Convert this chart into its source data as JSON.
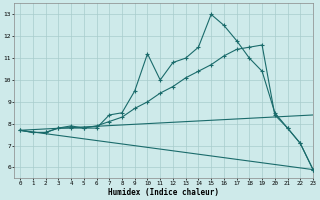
{
  "xlabel": "Humidex (Indice chaleur)",
  "xlim": [
    -0.5,
    23
  ],
  "ylim": [
    5.5,
    13.5
  ],
  "xticks": [
    0,
    1,
    2,
    3,
    4,
    5,
    6,
    7,
    8,
    9,
    10,
    11,
    12,
    13,
    14,
    15,
    16,
    17,
    18,
    19,
    20,
    21,
    22,
    23
  ],
  "yticks": [
    6,
    7,
    8,
    9,
    10,
    11,
    12,
    13
  ],
  "background_color": "#ceeaea",
  "grid_color": "#a8cccc",
  "line_color": "#1a6b6b",
  "line1_x": [
    0,
    1,
    2,
    3,
    4,
    5,
    6,
    7,
    8,
    9,
    10,
    11,
    12,
    13,
    14,
    15,
    16,
    17,
    18,
    19,
    20,
    21,
    22,
    23
  ],
  "line1_y": [
    7.7,
    7.6,
    7.6,
    7.8,
    7.9,
    7.8,
    7.8,
    8.4,
    8.5,
    9.5,
    11.2,
    10.0,
    10.8,
    11.0,
    11.5,
    13.0,
    12.5,
    11.8,
    11.0,
    10.4,
    8.5,
    7.8,
    7.1,
    5.9
  ],
  "line2_x": [
    0,
    1,
    2,
    3,
    4,
    5,
    6,
    7,
    8,
    9,
    10,
    11,
    12,
    13,
    14,
    15,
    16,
    17,
    18,
    19,
    20,
    21,
    22,
    23
  ],
  "line2_y": [
    7.7,
    7.6,
    7.6,
    7.8,
    7.8,
    7.8,
    7.9,
    8.1,
    8.3,
    8.7,
    9.0,
    9.4,
    9.7,
    10.1,
    10.4,
    10.7,
    11.1,
    11.4,
    11.5,
    11.6,
    8.4,
    7.8,
    7.1,
    5.9
  ],
  "line3_x": [
    0,
    23
  ],
  "line3_y": [
    7.7,
    8.4
  ],
  "line4_x": [
    0,
    23
  ],
  "line4_y": [
    7.7,
    5.9
  ]
}
